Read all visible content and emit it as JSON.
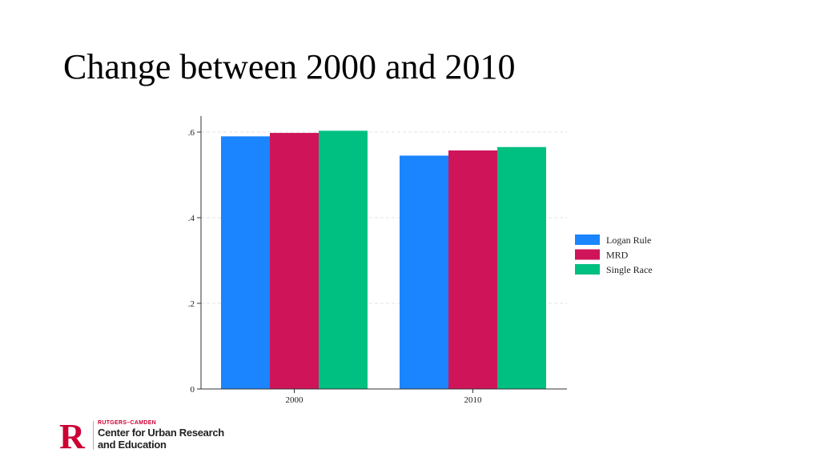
{
  "slide": {
    "title": "Change between 2000 and 2010"
  },
  "chart_data": {
    "type": "bar",
    "title": "",
    "xlabel": "",
    "ylabel": "",
    "categories": [
      "2000",
      "2010"
    ],
    "series": [
      {
        "name": "Logan Rule",
        "color": "#1a85ff",
        "values": [
          0.59,
          0.545
        ]
      },
      {
        "name": "MRD",
        "color": "#d0145a",
        "values": [
          0.598,
          0.557
        ]
      },
      {
        "name": "Single Race",
        "color": "#00c081",
        "values": [
          0.603,
          0.565
        ]
      }
    ],
    "ylim": [
      0,
      0.6
    ],
    "yticks": [
      {
        "value": 0,
        "label": "0"
      },
      {
        "value": 0.2,
        "label": ".2"
      },
      {
        "value": 0.4,
        "label": ".4"
      },
      {
        "value": 0.6,
        "label": ".6"
      }
    ],
    "grid": true,
    "legend_position": "right"
  },
  "logo": {
    "letter": "R",
    "line1": "RUTGERS–CAMDEN",
    "line2": "Center for Urban Research",
    "line3": "and Education",
    "color": "#cc0033"
  }
}
